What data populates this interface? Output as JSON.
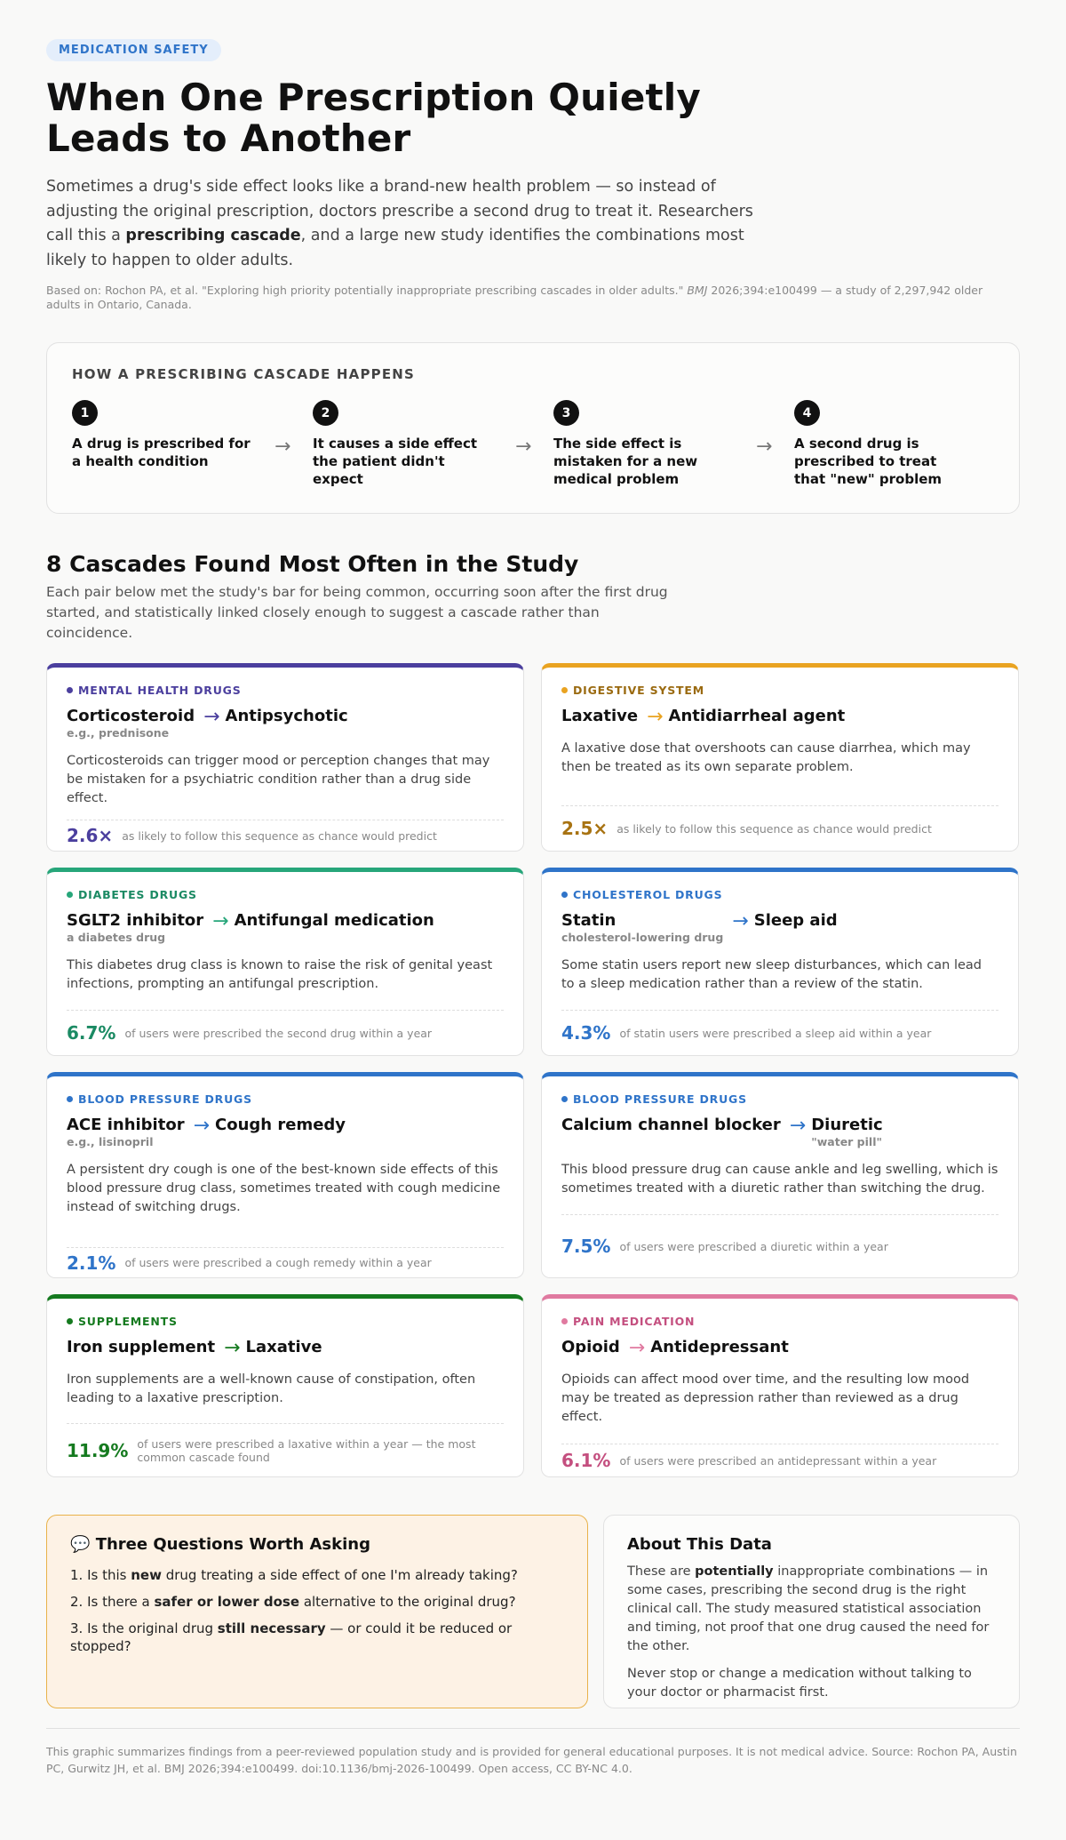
{
  "header": {
    "tag": "MEDICATION SAFETY",
    "title": "When One Prescription Quietly Leads to Another",
    "lede_1": "Sometimes a drug's side effect looks like a brand-new health problem — so instead of adjusting the original prescription, doctors prescribe a second drug to treat it. Researchers call this a ",
    "lede_bold": "prescribing cascade",
    "lede_2": ", and a large new study identifies the combinations most likely to happen to older adults.",
    "source_1": "Based on: Rochon PA, et al. \"Exploring high priority potentially inappropriate prescribing cascades in older adults.\" ",
    "source_journal": "BMJ",
    "source_2": " 2026;394:e100499 — a study of 2,297,942 older adults in Ontario, Canada."
  },
  "how": {
    "title": "HOW A PRESCRIBING CASCADE HAPPENS",
    "steps": [
      {
        "num": "1",
        "text": "A drug is prescribed for a health condition"
      },
      {
        "num": "2",
        "text": "It causes a side effect the patient didn't expect"
      },
      {
        "num": "3",
        "text": "The side effect is mistaken for a new medical problem"
      },
      {
        "num": "4",
        "text": "A second drug is prescribed to treat that \"new\" problem"
      }
    ],
    "arrow": "→"
  },
  "section": {
    "title": "8 Cascades Found Most Often in the Study",
    "subtitle": "Each pair below met the study's bar for being common, occurring soon after the first drug started, and statistically linked closely enough to suggest a cascade rather than coincidence."
  },
  "cards": [
    {
      "category": "MENTAL HEALTH DRUGS",
      "color": "#4b3f9e",
      "drug1": "Corticosteroid",
      "drug1_sub": "e.g., prednisone",
      "drug2": "Antipsychotic",
      "drug2_sub": "",
      "desc": "Corticosteroids can trigger mood or perception changes that may be mistaken for a psychiatric condition rather than a drug side effect.",
      "stat": "2.6×",
      "stat_text": "as likely to follow this sequence as chance would predict"
    },
    {
      "category": "DIGESTIVE SYSTEM",
      "color": "#e9a321",
      "label_color": "#9a6a10",
      "stat_color": "#a87312",
      "drug1": "Laxative",
      "drug1_sub": "",
      "drug2": "Antidiarrheal agent",
      "drug2_sub": "",
      "desc": "A laxative dose that overshoots can cause diarrhea, which may then be treated as its own separate problem.",
      "stat": "2.5×",
      "stat_text": "as likely to follow this sequence as chance would predict"
    },
    {
      "category": "DIABETES DRUGS",
      "color": "#27a67a",
      "label_color": "#1b8a63",
      "stat_color": "#1b8a63",
      "drug1": "SGLT2 inhibitor",
      "drug1_sub": "a diabetes drug",
      "drug2": "Antifungal medication",
      "drug2_sub": "",
      "desc": "This diabetes drug class is known to raise the risk of genital yeast infections, prompting an antifungal prescription.",
      "stat": "6.7%",
      "stat_text": "of users were prescribed the second drug within a year"
    },
    {
      "category": "CHOLESTEROL DRUGS",
      "color": "#2f74c9",
      "drug1": "Statin",
      "drug1_sub": "cholesterol-lowering drug",
      "drug2": "Sleep aid",
      "drug2_sub": "",
      "desc": "Some statin users report new sleep disturbances, which can lead to a sleep medication rather than a review of the statin.",
      "stat": "4.3%",
      "stat_text": "of statin users were prescribed a sleep aid within a year"
    },
    {
      "category": "BLOOD PRESSURE DRUGS",
      "color": "#2f74c9",
      "drug1": "ACE inhibitor",
      "drug1_sub": "e.g., lisinopril",
      "drug2": "Cough remedy",
      "drug2_sub": "",
      "desc": "A persistent dry cough is one of the best-known side effects of this blood pressure drug class, sometimes treated with cough medicine instead of switching drugs.",
      "stat": "2.1%",
      "stat_text": "of users were prescribed a cough remedy within a year"
    },
    {
      "category": "BLOOD PRESSURE DRUGS",
      "color": "#2f74c9",
      "drug1": "Calcium channel blocker",
      "drug1_sub": "",
      "drug2": "Diuretic",
      "drug2_sub": "\"water pill\"",
      "desc": "This blood pressure drug can cause ankle and leg swelling, which is sometimes treated with a diuretic rather than switching the drug.",
      "stat": "7.5%",
      "stat_text": "of users were prescribed a diuretic within a year"
    },
    {
      "category": "SUPPLEMENTS",
      "color": "#157a1f",
      "drug1": "Iron supplement",
      "drug1_sub": "",
      "drug2": "Laxative",
      "drug2_sub": "",
      "desc": "Iron supplements are a well-known cause of constipation, often leading to a laxative prescription.",
      "stat": "11.9%",
      "stat_text": "of users were prescribed a laxative within a year — the most common cascade found"
    },
    {
      "category": "PAIN MEDICATION",
      "color": "#e07aa0",
      "label_color": "#c44f7f",
      "stat_color": "#c44f7f",
      "drug1": "Opioid",
      "drug1_sub": "",
      "drug2": "Antidepressant",
      "drug2_sub": "",
      "desc": "Opioids can affect mood over time, and the resulting low mood may be treated as depression rather than reviewed as a drug effect.",
      "stat": "6.1%",
      "stat_text": "of users were prescribed an antidepressant within a year"
    }
  ],
  "questions": {
    "icon": "speech-bubble-icon",
    "icon_glyph": "💬",
    "title": "Three Questions Worth Asking",
    "items": [
      {
        "a": "1. Is this ",
        "b": "new",
        "c": " drug treating a side effect of one I'm already taking?"
      },
      {
        "a": "2. Is there a ",
        "b": "safer or lower dose",
        "c": " alternative to the original drug?"
      },
      {
        "a": "3. Is the original drug ",
        "b": "still necessary",
        "c": " — or could it be reduced or stopped?"
      }
    ]
  },
  "about": {
    "title": "About This Data",
    "p1_a": "These are ",
    "p1_b": "potentially",
    "p1_c": " inappropriate combinations — in some cases, prescribing the second drug is the right clinical call. The study measured statistical association and timing, not proof that one drug caused the need for the other.",
    "p2": "Never stop or change a medication without talking to your doctor or pharmacist first."
  },
  "footer": "This graphic summarizes findings from a peer-reviewed population study and is provided for general educational purposes. It is not medical advice. Source: Rochon PA, Austin PC, Gurwitz JH, et al. BMJ 2026;394:e100499. doi:10.1136/bmj-2026-100499. Open access, CC BY-NC 4.0."
}
